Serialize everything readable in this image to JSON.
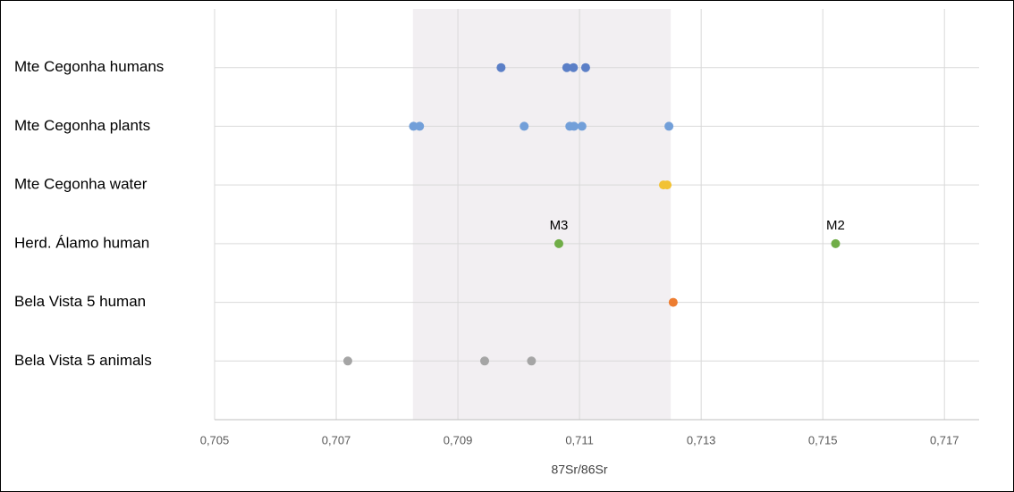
{
  "chart_data": {
    "type": "strip",
    "x_label": "87Sr/86Sr",
    "xlim": [
      0.705,
      0.71757
    ],
    "xticks": [
      {
        "value": 0.705,
        "label": "0,705"
      },
      {
        "value": 0.707,
        "label": "0,707"
      },
      {
        "value": 0.709,
        "label": "0,709"
      },
      {
        "value": 0.711,
        "label": "0,711"
      },
      {
        "value": 0.713,
        "label": "0,713"
      },
      {
        "value": 0.715,
        "label": "0,715"
      },
      {
        "value": 0.717,
        "label": "0,717"
      }
    ],
    "grid": true,
    "band": [
      0.70826,
      0.7125
    ],
    "series": [
      {
        "name": "Mte Cegonha humans",
        "color": "#5b7fc7",
        "values": [
          0.70971,
          0.71079,
          0.7109,
          0.7111
        ]
      },
      {
        "name": "Mte Cegonha plants",
        "color": "#729fd9",
        "values": [
          0.70827,
          0.70837,
          0.71009,
          0.71084,
          0.71091,
          0.71104,
          0.71247
        ]
      },
      {
        "name": "Mte Cegonha water",
        "color": "#f2c233",
        "values": [
          0.71238,
          0.71244
        ]
      },
      {
        "name": "Herd. Álamo human",
        "color": "#70ad47",
        "values": [
          0.71066,
          0.71521
        ],
        "point_labels": [
          "M3",
          "M2"
        ]
      },
      {
        "name": "Bela Vista 5 human",
        "color": "#ed7d31",
        "values": [
          0.71254
        ]
      },
      {
        "name": "Bela Vista 5 animals",
        "color": "#a5a5a5",
        "values": [
          0.70719,
          0.70944,
          0.71021
        ]
      }
    ]
  }
}
